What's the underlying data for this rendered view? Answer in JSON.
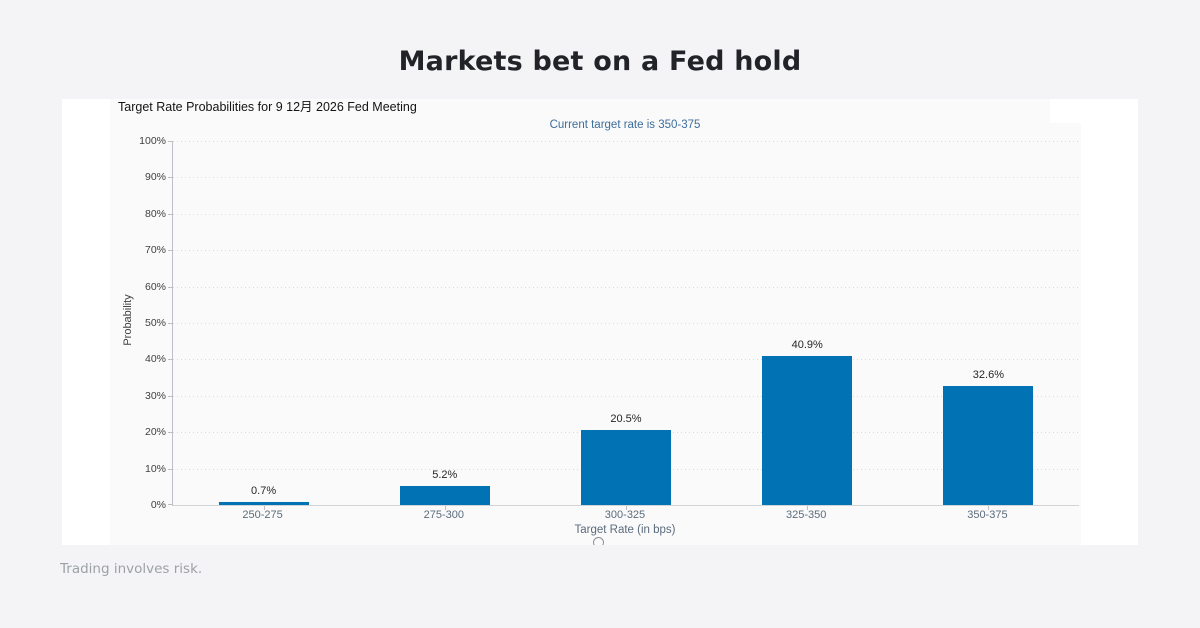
{
  "page": {
    "headline": "Markets bet on a Fed hold",
    "footer": "Trading involves risk.",
    "background_color": "#f4f4f6",
    "headline_color": "#212329",
    "footer_color": "#9da1a5"
  },
  "chart_data": {
    "type": "bar",
    "title": "Target Rate Probabilities for 9 12月 2026 Fed Meeting",
    "subtitle": "Current target rate is 350-375",
    "categories": [
      "250-275",
      "275-300",
      "300-325",
      "325-350",
      "350-375"
    ],
    "values": [
      0.7,
      5.2,
      20.5,
      40.9,
      32.6
    ],
    "value_labels": [
      "0.7%",
      "5.2%",
      "20.5%",
      "40.9%",
      "32.6%"
    ],
    "xlabel": "Target Rate (in bps)",
    "ylabel": "Probability",
    "ylim": [
      0,
      100
    ],
    "ytick_labels": [
      "0%",
      "10%",
      "20%",
      "30%",
      "40%",
      "50%",
      "60%",
      "70%",
      "80%",
      "90%",
      "100%"
    ],
    "grid": "horizontal dotted",
    "legend_position": "none",
    "bar_color": "#0173b5",
    "axis_color": "#bcbfc3",
    "grid_color": "#d9dadc",
    "subtitle_color": "#3e6d9c",
    "xtick_color": "#5b6b7c",
    "ytick_color": "#404040",
    "value_label_color": "#262626"
  }
}
